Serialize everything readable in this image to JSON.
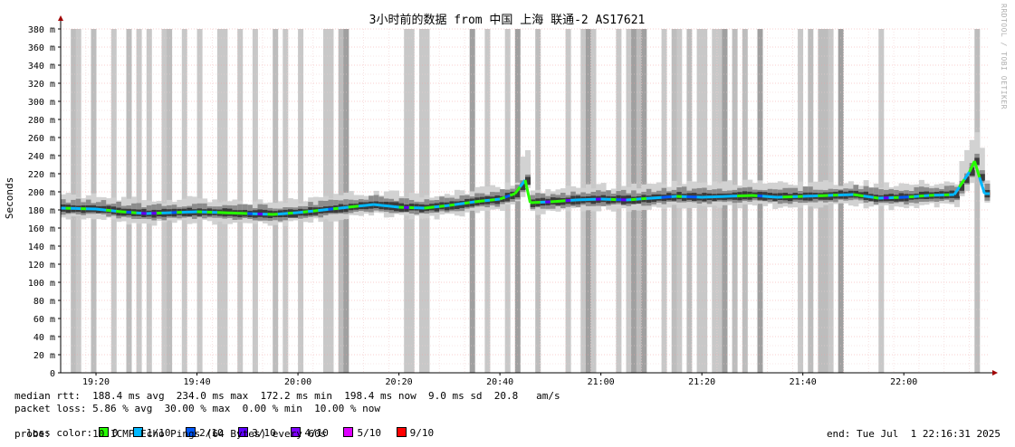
{
  "chart_data": {
    "type": "area",
    "title": "3小时前的数据 from 中国 上海 联通-2 AS17621",
    "ylabel": "Seconds",
    "ylim": [
      0,
      0.38
    ],
    "y_ticks": [
      "0",
      "20 m",
      "40 m",
      "60 m",
      "80 m",
      "100 m",
      "120 m",
      "140 m",
      "160 m",
      "180 m",
      "200 m",
      "220 m",
      "240 m",
      "260 m",
      "280 m",
      "300 m",
      "320 m",
      "340 m",
      "360 m",
      "380 m"
    ],
    "x_ticks": [
      "19:20",
      "19:40",
      "20:00",
      "20:20",
      "20:40",
      "21:00",
      "21:20",
      "21:40",
      "22:00"
    ],
    "x_range": [
      "19:13",
      "22:17"
    ],
    "median_rtt_ms": [
      [
        "19:13",
        182
      ],
      [
        "19:20",
        181
      ],
      [
        "19:25",
        178
      ],
      [
        "19:30",
        176
      ],
      [
        "19:35",
        177
      ],
      [
        "19:40",
        178
      ],
      [
        "19:45",
        177
      ],
      [
        "19:50",
        176
      ],
      [
        "19:55",
        175
      ],
      [
        "20:00",
        177
      ],
      [
        "20:05",
        180
      ],
      [
        "20:10",
        183
      ],
      [
        "20:15",
        186
      ],
      [
        "20:20",
        183
      ],
      [
        "20:25",
        182
      ],
      [
        "20:30",
        185
      ],
      [
        "20:35",
        189
      ],
      [
        "20:40",
        192
      ],
      [
        "20:43",
        198
      ],
      [
        "20:45",
        213
      ],
      [
        "20:46",
        188
      ],
      [
        "20:50",
        189
      ],
      [
        "20:55",
        191
      ],
      [
        "21:00",
        192
      ],
      [
        "21:05",
        191
      ],
      [
        "21:10",
        193
      ],
      [
        "21:15",
        195
      ],
      [
        "21:20",
        194
      ],
      [
        "21:25",
        195
      ],
      [
        "21:30",
        196
      ],
      [
        "21:35",
        194
      ],
      [
        "21:40",
        195
      ],
      [
        "21:45",
        196
      ],
      [
        "21:50",
        197
      ],
      [
        "21:55",
        193
      ],
      [
        "22:00",
        194
      ],
      [
        "22:05",
        196
      ],
      [
        "22:10",
        197
      ],
      [
        "22:13",
        222
      ],
      [
        "22:14",
        234
      ],
      [
        "22:16",
        198
      ]
    ],
    "packet_loss_bands_pct": [
      10,
      20,
      30
    ],
    "stats": {
      "median_rtt": "median rtt:  188.4 ms avg  234.0 ms max  172.2 ms min  198.4 ms now  9.0 ms sd  20.8   am/s",
      "packet_loss": "packet loss: 5.86 % avg  30.00 % max  0.00 % min  10.00 % now"
    },
    "legend_title": "loss color:",
    "legend": [
      {
        "label": "0",
        "color": "#26ff00"
      },
      {
        "label": "1/10",
        "color": "#00b8ff"
      },
      {
        "label": "2/10",
        "color": "#0059ff"
      },
      {
        "label": "3/10",
        "color": "#5e00ff"
      },
      {
        "label": "4/10",
        "color": "#7e00ff"
      },
      {
        "label": "5/10",
        "color": "#dd00ff"
      },
      {
        "label": "9/10",
        "color": "#ff0000"
      }
    ],
    "probe": "probe:       10 ICMP Echo Pings (64 Bytes) every 60s",
    "end": "end: Tue Jul  1 22:16:31 2025"
  },
  "watermark": "RRDTOOL / TOBI OETIKER",
  "colors": {
    "background": "#ffffff",
    "grid_major": "#ffb0b0",
    "loss_band": "#c8c8c8",
    "axis": "#000000",
    "arrow": "#a00000"
  }
}
